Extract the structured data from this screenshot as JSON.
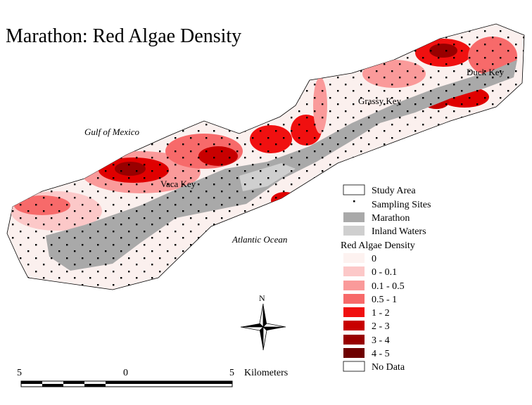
{
  "header": {
    "title": "Marathon:  Red Algae Density"
  },
  "places": [
    "Gulf of Mexico",
    "Vaca Key",
    "Grassy Key",
    "Duck Key",
    "Atlantic Ocean"
  ],
  "legend": {
    "items": [
      "Study Area",
      "Sampling Sites",
      "Marathon",
      "Inland Waters"
    ],
    "density_title": "Red Algae Density",
    "classes": [
      "0",
      "0 - 0.1",
      "0.1 - 0.5",
      "0.5 - 1",
      "1 - 2",
      "2 - 3",
      "3 - 4",
      "4 - 5"
    ],
    "no_data": "No Data"
  },
  "north": "N",
  "scale_bar": {
    "labels": [
      "5",
      "0",
      "5"
    ],
    "unit": "Kilometers"
  }
}
